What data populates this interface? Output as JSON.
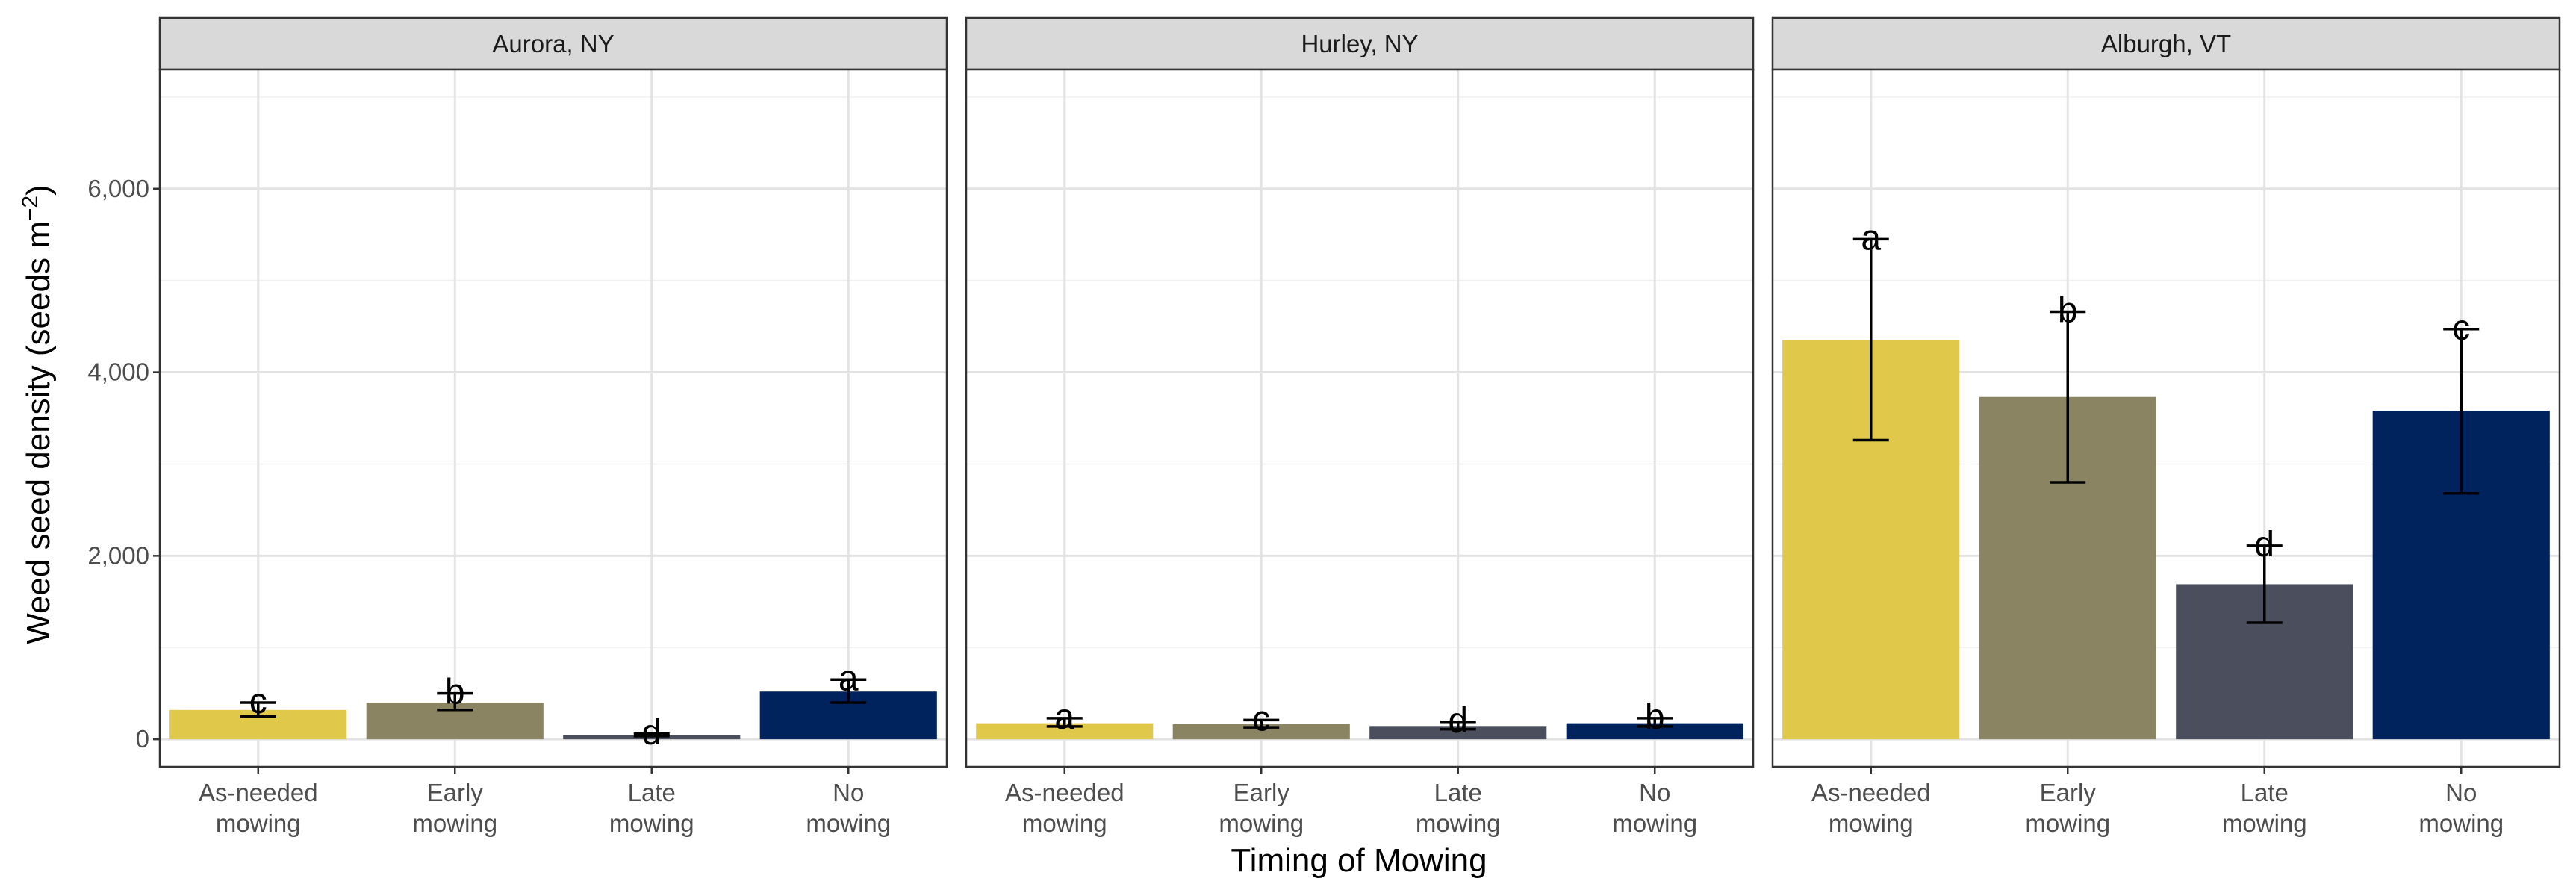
{
  "chart_data": {
    "type": "bar",
    "xlabel": "Timing of Mowing",
    "ylabel_main": "Weed seed density (seeds m",
    "ylabel_sup": "−2",
    "ylabel_close": ")",
    "ylim": [
      -300,
      7300
    ],
    "y_ticks": [
      0,
      2000,
      4000,
      6000
    ],
    "y_tick_labels": [
      "0",
      "2,000",
      "4,000",
      "6,000"
    ],
    "categories": [
      {
        "line1": "As-needed",
        "line2": "mowing"
      },
      {
        "line1": "Early",
        "line2": "mowing"
      },
      {
        "line1": "Late",
        "line2": "mowing"
      },
      {
        "line1": "No",
        "line2": "mowing"
      }
    ],
    "colors": [
      "#dfc84a",
      "#8b8462",
      "#4b4e5c",
      "#00235d"
    ],
    "grid": true,
    "panels": [
      {
        "title": "Aurora, NY",
        "values": [
          320,
          400,
          45,
          520
        ],
        "errors": [
          [
            250,
            400
          ],
          [
            320,
            500
          ],
          [
            35,
            60
          ],
          [
            400,
            650
          ]
        ],
        "letters": [
          "c",
          "b",
          "d",
          "a"
        ]
      },
      {
        "title": "Hurley, NY",
        "values": [
          175,
          165,
          145,
          175
        ],
        "errors": [
          [
            140,
            230
          ],
          [
            130,
            210
          ],
          [
            110,
            190
          ],
          [
            140,
            230
          ]
        ],
        "letters": [
          "a",
          "c",
          "d",
          "b"
        ]
      },
      {
        "title": "Alburgh, VT",
        "values": [
          4350,
          3730,
          1690,
          3580
        ],
        "errors": [
          [
            3260,
            5450
          ],
          [
            2800,
            4660
          ],
          [
            1270,
            2110
          ],
          [
            2680,
            4470
          ]
        ],
        "letters": [
          "a",
          "b",
          "d",
          "c"
        ]
      }
    ]
  }
}
